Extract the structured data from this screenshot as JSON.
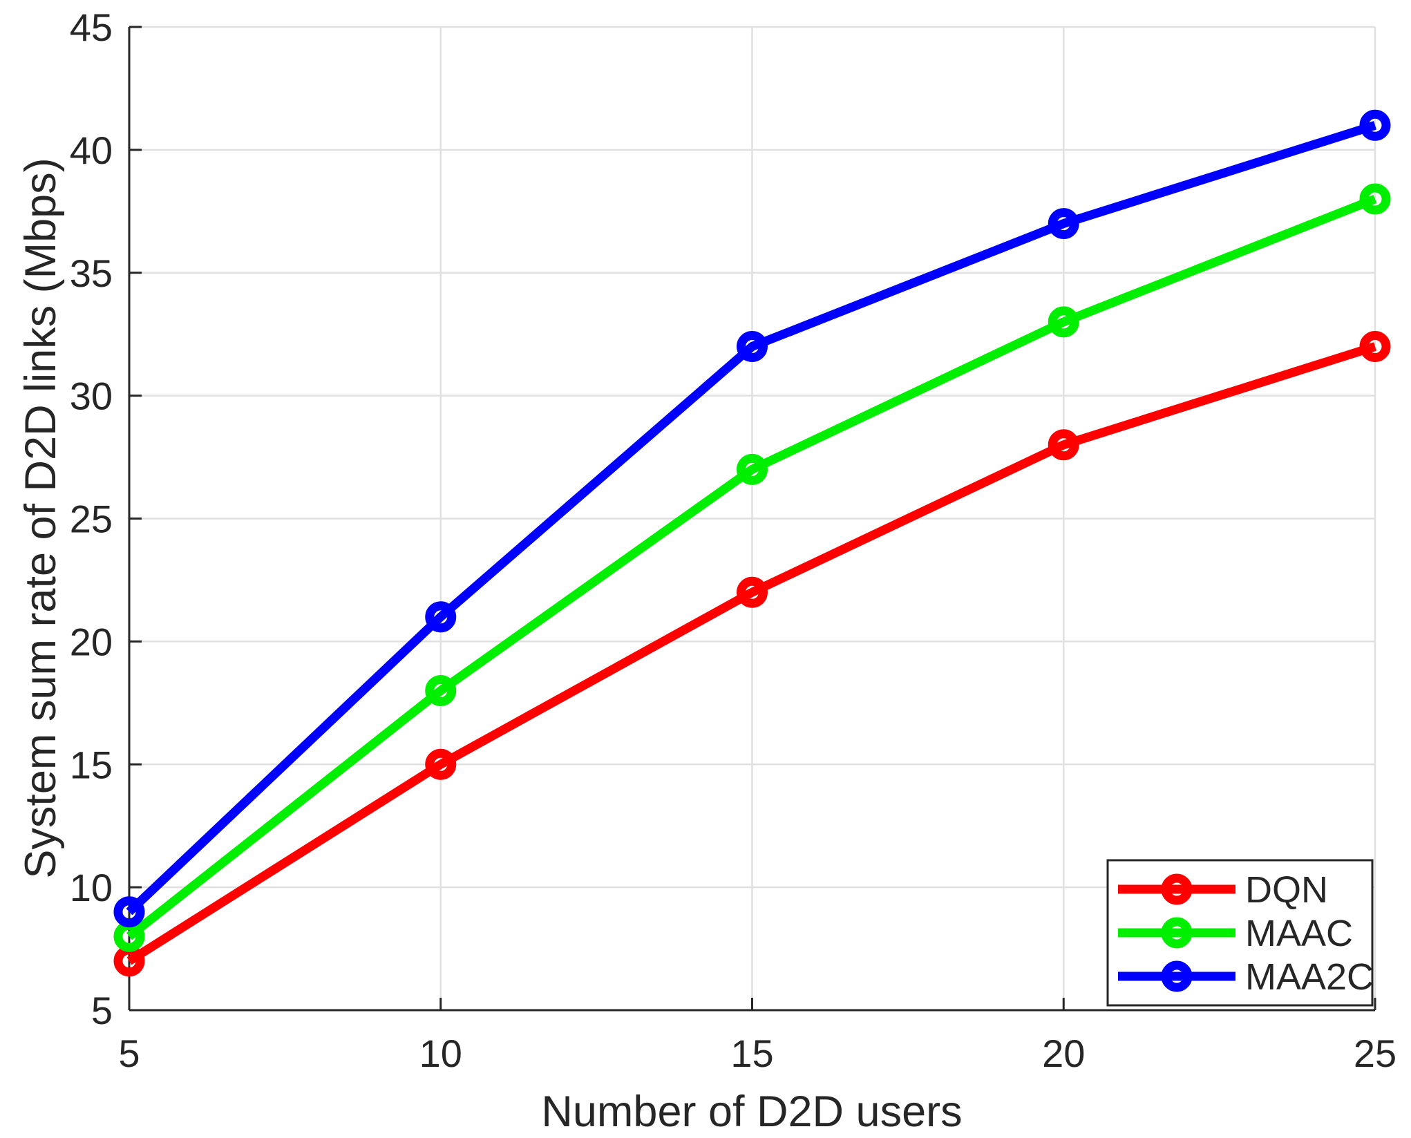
{
  "figure": {
    "background": "#ffffff"
  },
  "chart_data": {
    "type": "line",
    "title": "",
    "xlabel": "Number of D2D users",
    "ylabel": "System sum rate of D2D links (Mbps)",
    "x": [
      5,
      10,
      15,
      20,
      25
    ],
    "series": [
      {
        "name": "DQN",
        "color": "#ff0000",
        "values": [
          7,
          15,
          22,
          28,
          32
        ]
      },
      {
        "name": "MAAC",
        "color": "#00ee00",
        "values": [
          8,
          18,
          27,
          33,
          38
        ]
      },
      {
        "name": "MAA2C",
        "color": "#0000ff",
        "values": [
          9,
          21,
          32,
          37,
          41
        ]
      }
    ],
    "xlim": [
      5,
      25
    ],
    "ylim": [
      5,
      45
    ],
    "xticks": [
      5,
      10,
      15,
      20,
      25
    ],
    "yticks": [
      5,
      10,
      15,
      20,
      25,
      30,
      35,
      40,
      45
    ],
    "grid": true,
    "marker": "o",
    "legend_position": "lower right",
    "grid_color": "#e0e0e0",
    "axis_color": "#262626",
    "text_color": "#262626",
    "legend_background": "#ffffff"
  }
}
